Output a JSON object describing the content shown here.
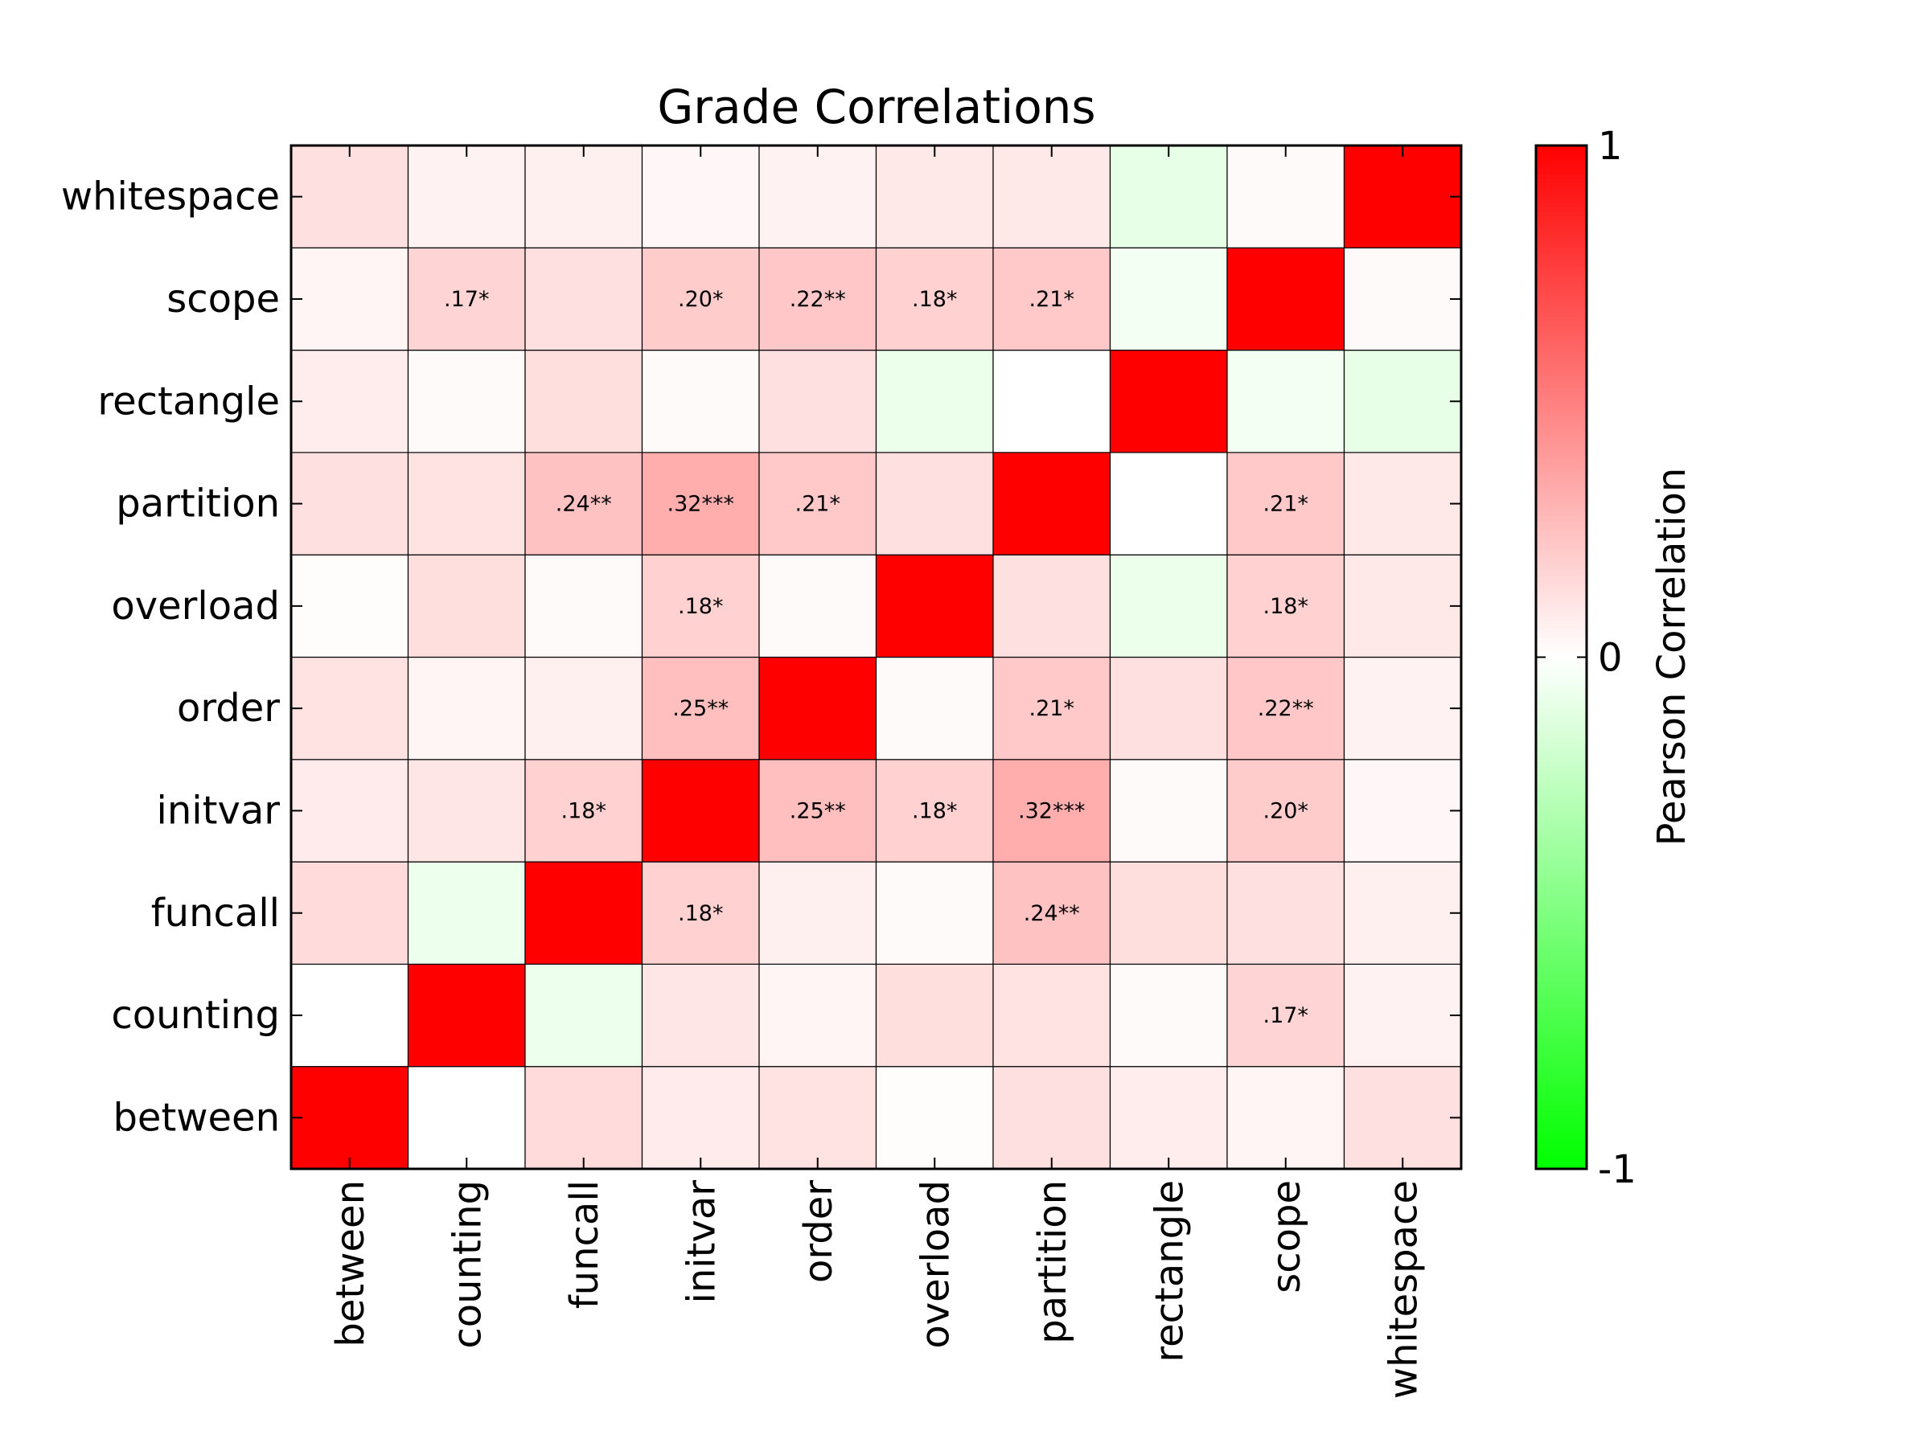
{
  "chart_data": {
    "type": "heatmap",
    "title": "Grade Correlations",
    "xlabel": "",
    "ylabel": "",
    "categories": [
      "between",
      "counting",
      "funcall",
      "initvar",
      "order",
      "overload",
      "partition",
      "rectangle",
      "scope",
      "whitespace"
    ],
    "values": [
      [
        1.0,
        0.0,
        0.14,
        0.08,
        0.11,
        0.01,
        0.12,
        0.07,
        0.04,
        0.12
      ],
      [
        0.0,
        1.0,
        -0.07,
        0.1,
        0.04,
        0.13,
        0.11,
        0.02,
        0.17,
        0.05
      ],
      [
        0.14,
        -0.07,
        1.0,
        0.18,
        0.06,
        0.02,
        0.24,
        0.13,
        0.12,
        0.06
      ],
      [
        0.08,
        0.1,
        0.18,
        1.0,
        0.25,
        0.18,
        0.32,
        0.02,
        0.2,
        0.03
      ],
      [
        0.11,
        0.04,
        0.06,
        0.25,
        1.0,
        0.02,
        0.21,
        0.12,
        0.22,
        0.05
      ],
      [
        0.01,
        0.13,
        0.02,
        0.18,
        0.02,
        1.0,
        0.12,
        -0.08,
        0.18,
        0.09
      ],
      [
        0.12,
        0.11,
        0.24,
        0.32,
        0.21,
        0.12,
        1.0,
        0.0,
        0.21,
        0.09
      ],
      [
        0.07,
        0.02,
        0.13,
        0.02,
        0.12,
        -0.08,
        0.0,
        1.0,
        -0.05,
        -0.1
      ],
      [
        0.04,
        0.17,
        0.12,
        0.2,
        0.22,
        0.18,
        0.21,
        -0.05,
        1.0,
        0.02
      ],
      [
        0.12,
        0.05,
        0.06,
        0.03,
        0.05,
        0.09,
        0.09,
        -0.1,
        0.02,
        1.0
      ]
    ],
    "annotations": [
      [
        "",
        "",
        "",
        "",
        "",
        "",
        "",
        "",
        "",
        ""
      ],
      [
        "",
        "",
        "",
        "",
        "",
        "",
        "",
        "",
        ".17*",
        ""
      ],
      [
        "",
        "",
        "",
        ".18*",
        "",
        "",
        ".24**",
        "",
        "",
        ""
      ],
      [
        "",
        "",
        ".18*",
        "",
        ".25**",
        ".18*",
        ".32***",
        "",
        ".20*",
        ""
      ],
      [
        "",
        "",
        "",
        ".25**",
        "",
        "",
        ".21*",
        "",
        ".22**",
        ""
      ],
      [
        "",
        "",
        "",
        ".18*",
        "",
        "",
        "",
        "",
        ".18*",
        ""
      ],
      [
        "",
        "",
        ".24**",
        ".32***",
        ".21*",
        "",
        "",
        "",
        ".21*",
        ""
      ],
      [
        "",
        "",
        "",
        "",
        "",
        "",
        "",
        "",
        "",
        ""
      ],
      [
        "",
        ".17*",
        "",
        ".20*",
        ".22**",
        ".18*",
        ".21*",
        "",
        "",
        ""
      ],
      [
        "",
        "",
        "",
        "",
        "",
        "",
        "",
        "",
        "",
        ""
      ]
    ],
    "colorbar": {
      "label": "Pearson Correlation",
      "range": [
        -1,
        1
      ],
      "ticks": [
        "1",
        "0",
        "-1"
      ],
      "colors": {
        "high": "#ff0000",
        "mid": "#ffffff",
        "low": "#00ff00"
      }
    },
    "grid": true,
    "legend": "right"
  }
}
